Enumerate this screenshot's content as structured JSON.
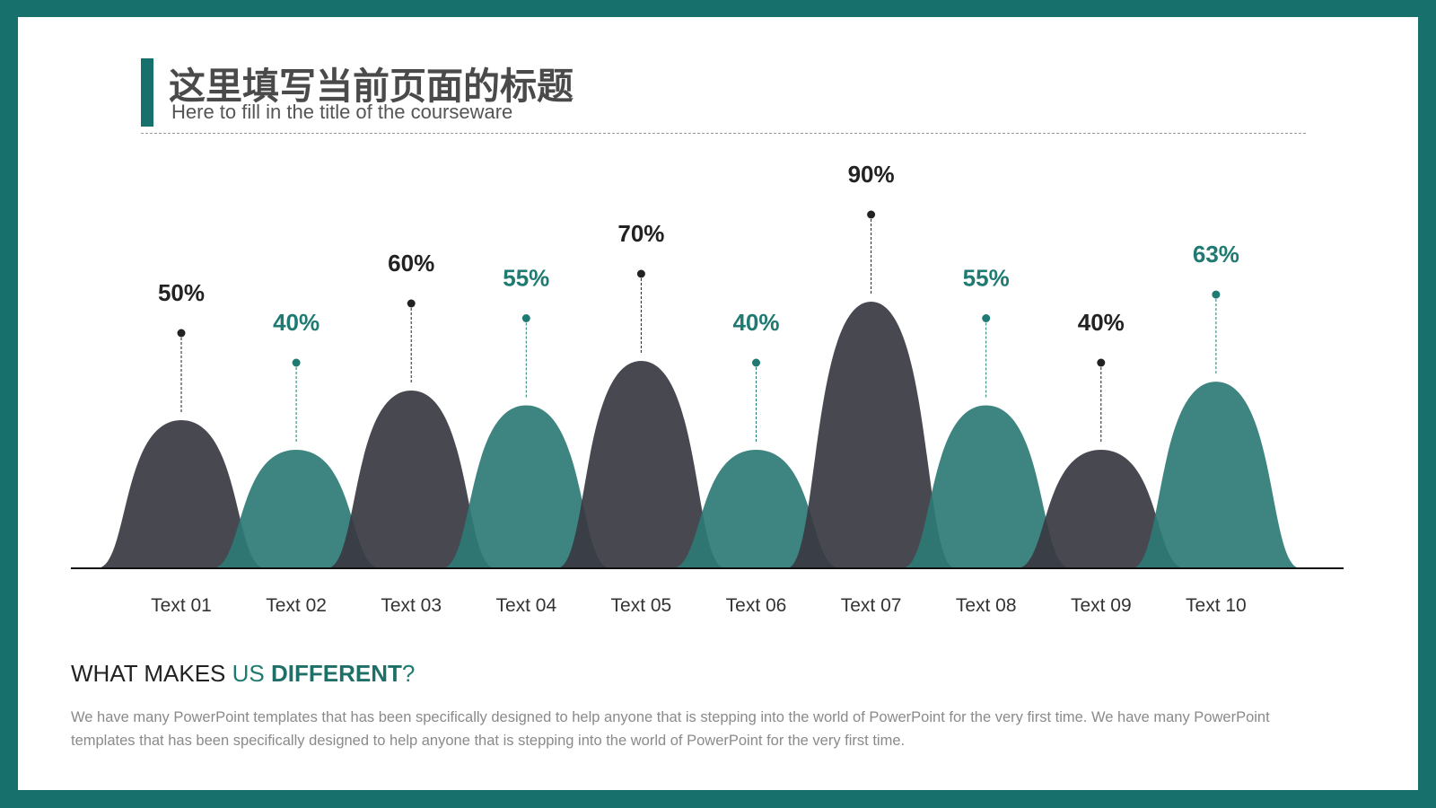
{
  "header": {
    "title": "这里填写当前页面的标题",
    "subtitle": "Here to fill in the title of the courseware"
  },
  "chart_data": {
    "type": "hump",
    "categories": [
      "Text 01",
      "Text 02",
      "Text 03",
      "Text 04",
      "Text 05",
      "Text 06",
      "Text 07",
      "Text 08",
      "Text 09",
      "Text 10"
    ],
    "values": [
      50,
      40,
      60,
      55,
      70,
      40,
      90,
      55,
      40,
      63
    ],
    "value_labels": [
      "50%",
      "40%",
      "60%",
      "55%",
      "70%",
      "40%",
      "90%",
      "55%",
      "40%",
      "63%"
    ],
    "colors": [
      "#383842",
      "#2e7b76",
      "#383842",
      "#2e7b76",
      "#383842",
      "#2e7b76",
      "#383842",
      "#2e7b76",
      "#383842",
      "#2e7b76"
    ],
    "label_colors": [
      "#222222",
      "#1f7a72",
      "#222222",
      "#1f7a72",
      "#222222",
      "#1f7a72",
      "#222222",
      "#1f7a72",
      "#222222",
      "#1f7a72"
    ]
  },
  "footer": {
    "heading": [
      {
        "text": "WHAT MAKES ",
        "color": "#222222",
        "bold": false
      },
      {
        "text": "US ",
        "color": "#1f7a72",
        "bold": false
      },
      {
        "text": "DIFFERENT",
        "color": "#1f6f69",
        "bold": true
      },
      {
        "text": "?",
        "color": "#1f7a72",
        "bold": false
      }
    ],
    "body": "We have many PowerPoint templates that has been specifically designed to help anyone that is stepping into the world of PowerPoint for the very first time. We have many PowerPoint templates that has been specifically designed to help anyone that is stepping into the world of PowerPoint for the very first time."
  }
}
